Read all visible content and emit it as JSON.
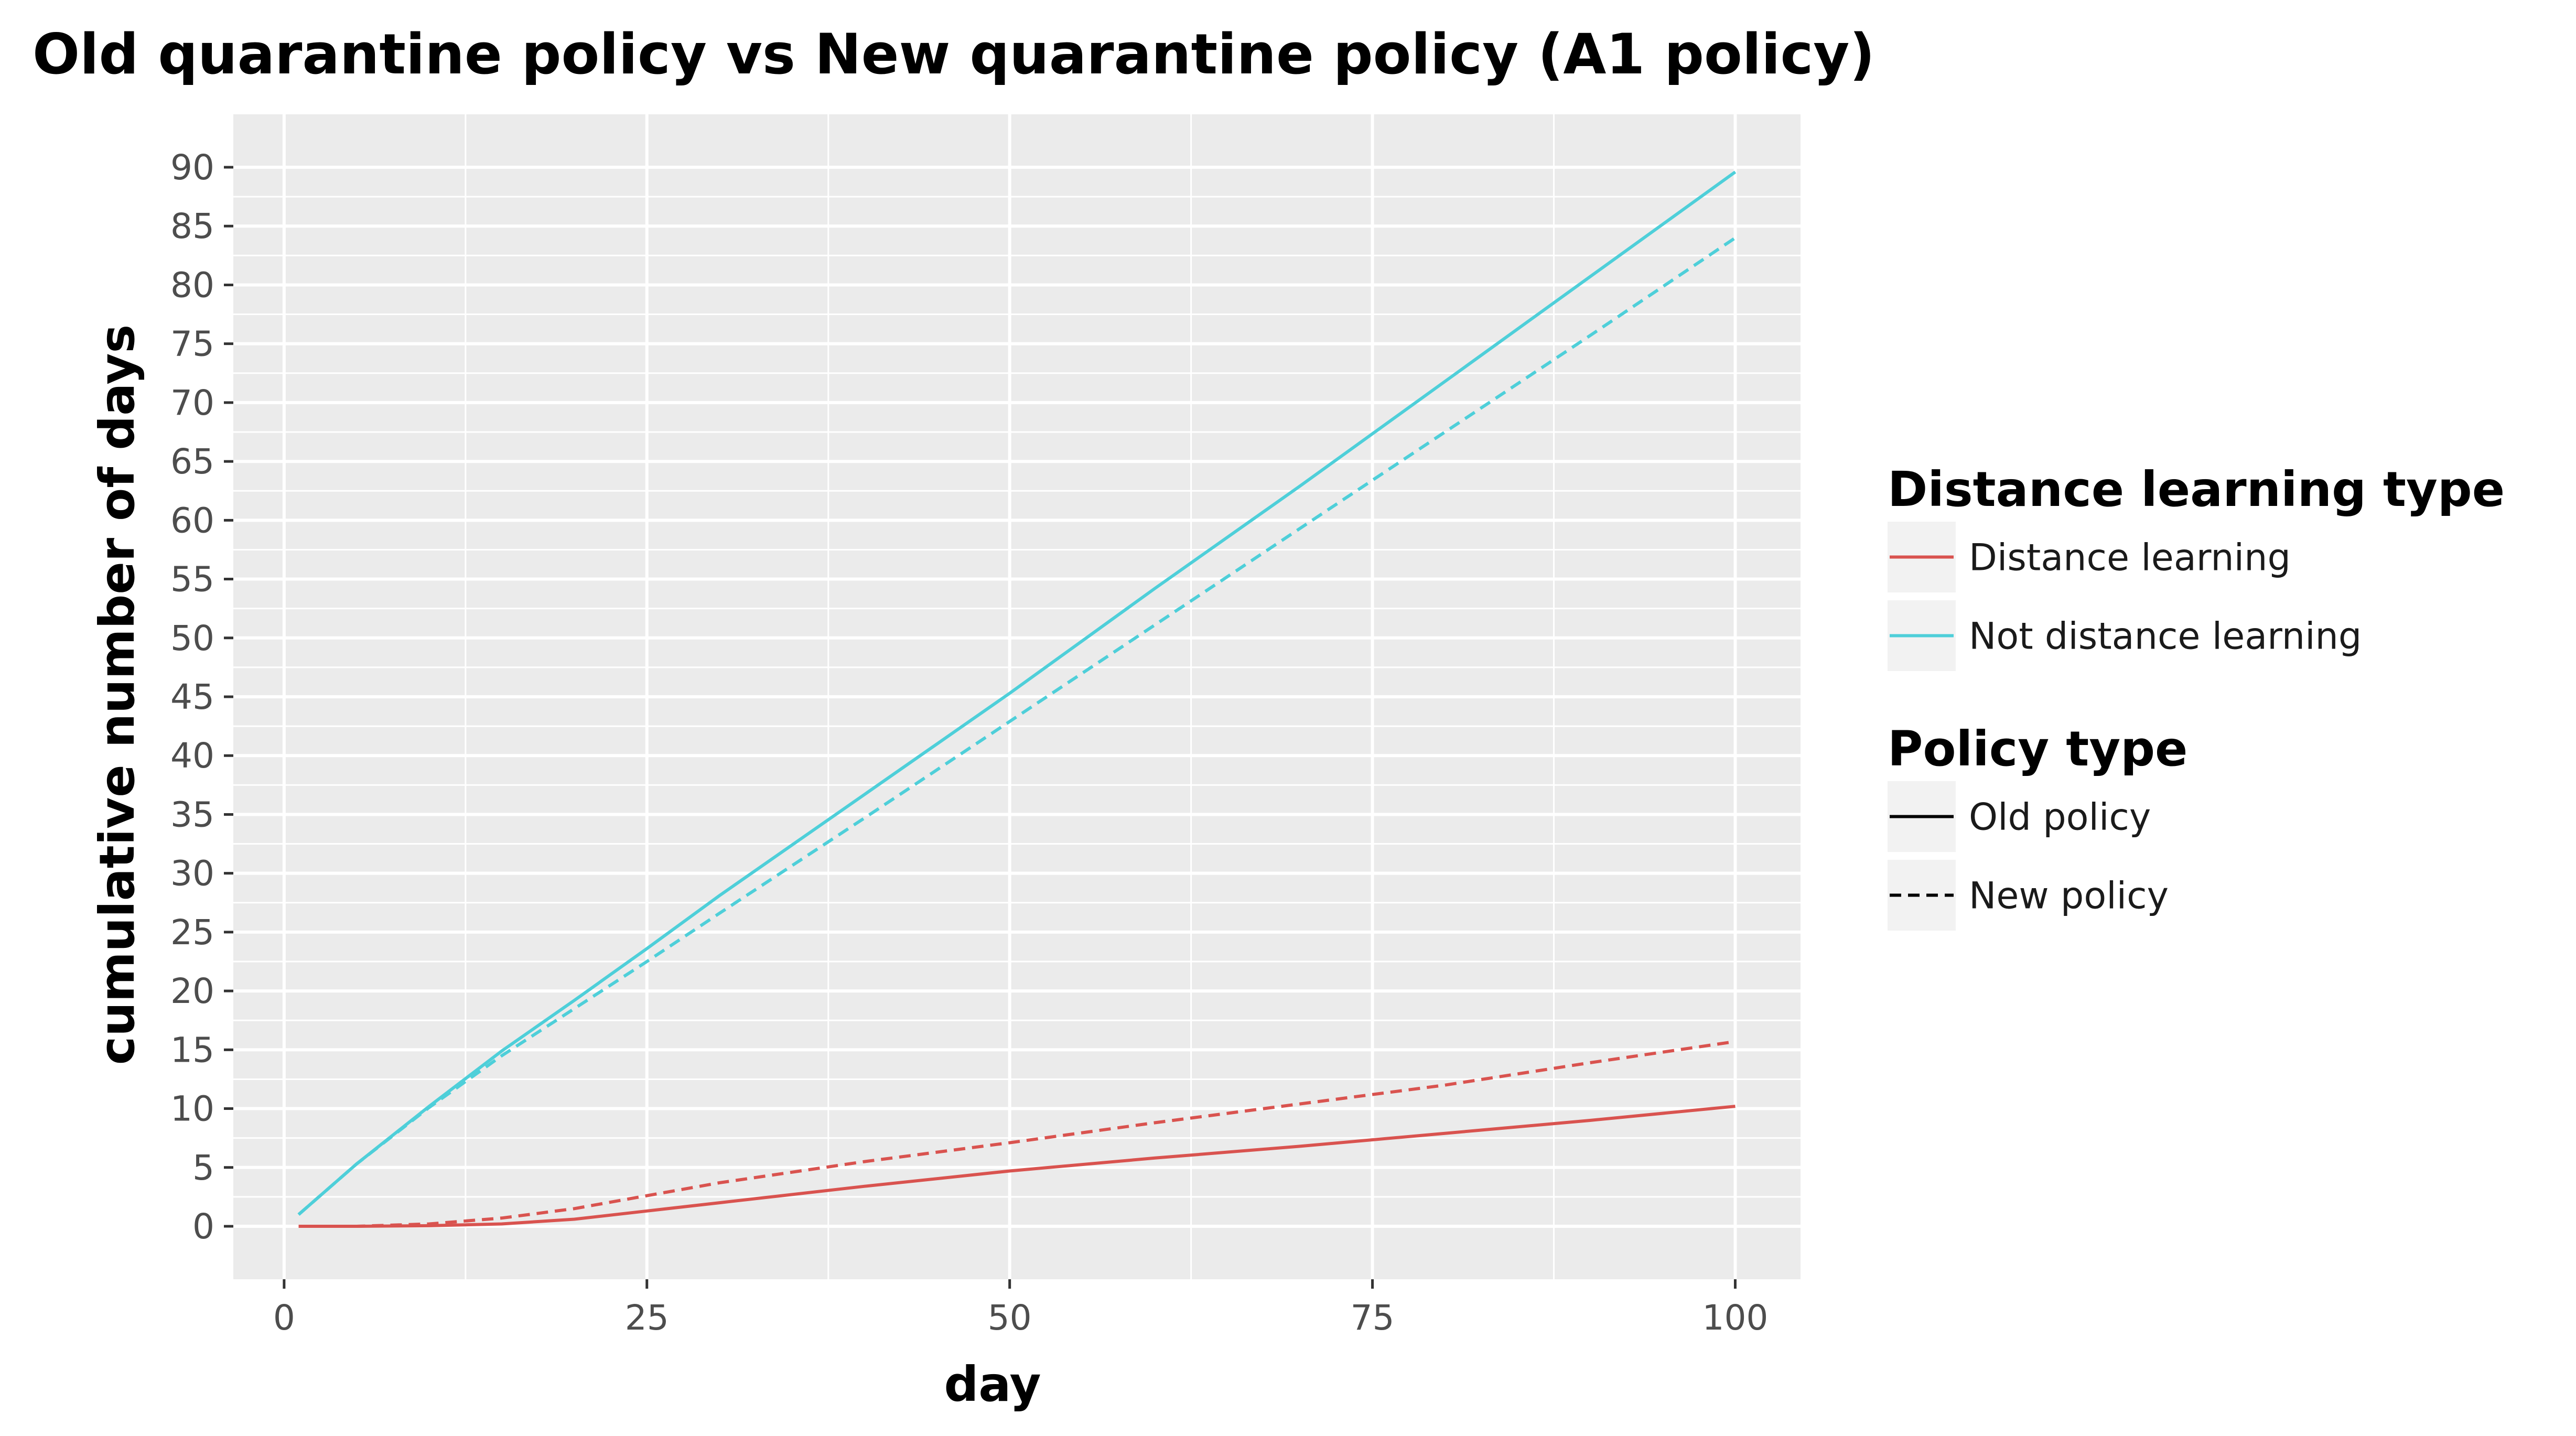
{
  "chart_data": {
    "type": "line",
    "title": "Old quarantine policy vs New quarantine policy (A1 policy)",
    "xlabel": "day",
    "ylabel": "cumulative number of days",
    "xlim": [
      -3.5,
      104.5
    ],
    "ylim": [
      -4.5,
      94.5
    ],
    "x_ticks": [
      0,
      25,
      50,
      75,
      100
    ],
    "x_tick_labels": [
      "0",
      "25",
      "50",
      "75",
      "100"
    ],
    "y_ticks": [
      0,
      5,
      10,
      15,
      20,
      25,
      30,
      35,
      40,
      45,
      50,
      55,
      60,
      65,
      70,
      75,
      80,
      85,
      90
    ],
    "y_tick_labels": [
      "0",
      "5",
      "10",
      "15",
      "20",
      "25",
      "30",
      "35",
      "40",
      "45",
      "50",
      "55",
      "60",
      "65",
      "70",
      "75",
      "80",
      "85",
      "90"
    ],
    "grid": true,
    "legend_position": "right",
    "legends": [
      {
        "title": "Distance learning type",
        "entries": [
          {
            "label": "Distance learning",
            "color": "#d9534f"
          },
          {
            "label": "Not distance learning",
            "color": "#4ecfd9"
          }
        ]
      },
      {
        "title": "Policy type",
        "entries": [
          {
            "label": "Old policy",
            "style": "solid",
            "color": "#000000"
          },
          {
            "label": "New policy",
            "style": "dashed",
            "color": "#000000"
          }
        ]
      }
    ],
    "series": [
      {
        "distance_type": "Not distance learning",
        "policy_type": "Old policy",
        "color": "#4ecfd9",
        "dash": false,
        "x": [
          1,
          5,
          10,
          15,
          20,
          25,
          30,
          40,
          50,
          60,
          70,
          80,
          90,
          100
        ],
        "y": [
          1,
          5.3,
          10.2,
          14.9,
          19.2,
          23.6,
          28.1,
          36.7,
          45.3,
          54.2,
          62.9,
          71.8,
          80.7,
          89.6
        ]
      },
      {
        "distance_type": "Not distance learning",
        "policy_type": "New policy",
        "color": "#4ecfd9",
        "dash": true,
        "x": [
          1,
          5,
          10,
          15,
          20,
          25,
          30,
          40,
          50,
          60,
          70,
          80,
          90,
          100
        ],
        "y": [
          1,
          5.3,
          10.1,
          14.5,
          18.5,
          22.5,
          26.6,
          34.7,
          42.9,
          51.1,
          59.3,
          67.5,
          75.7,
          84.0
        ]
      },
      {
        "distance_type": "Distance learning",
        "policy_type": "Old policy",
        "color": "#d9534f",
        "dash": false,
        "x": [
          1,
          5,
          10,
          15,
          20,
          25,
          30,
          40,
          50,
          60,
          70,
          80,
          90,
          100
        ],
        "y": [
          0,
          0,
          0.05,
          0.2,
          0.6,
          1.3,
          2.0,
          3.4,
          4.7,
          5.8,
          6.8,
          7.9,
          9.0,
          10.2
        ]
      },
      {
        "distance_type": "Distance learning",
        "policy_type": "New policy",
        "color": "#d9534f",
        "dash": true,
        "x": [
          1,
          5,
          10,
          15,
          20,
          25,
          30,
          40,
          50,
          60,
          70,
          80,
          90,
          100
        ],
        "y": [
          0,
          0,
          0.2,
          0.7,
          1.5,
          2.6,
          3.7,
          5.5,
          7.1,
          8.8,
          10.4,
          12.0,
          13.9,
          15.7
        ]
      }
    ]
  }
}
